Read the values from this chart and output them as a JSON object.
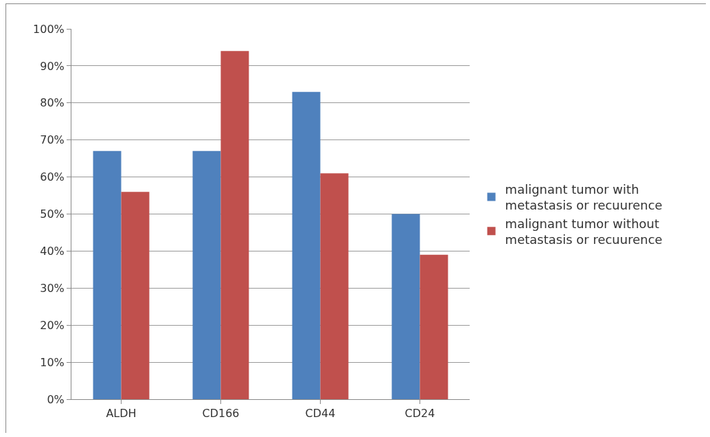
{
  "chart_data": {
    "type": "bar",
    "categories": [
      "ALDH",
      "CD166",
      "CD44",
      "CD24"
    ],
    "series": [
      {
        "name": "malignant tumor with metastasis or recuurence",
        "color": "#4f81bd",
        "values": [
          67,
          67,
          83,
          50
        ]
      },
      {
        "name": "malignant tumor without metastasis or recuurence",
        "color": "#c0504d",
        "values": [
          56,
          94,
          61,
          39
        ]
      }
    ],
    "ylim": [
      0,
      100
    ],
    "yticks": [
      {
        "value": 0,
        "label": "0%"
      },
      {
        "value": 10,
        "label": "10%"
      },
      {
        "value": 20,
        "label": "20%"
      },
      {
        "value": 30,
        "label": "30%"
      },
      {
        "value": 40,
        "label": "40%"
      },
      {
        "value": 50,
        "label": "50%"
      },
      {
        "value": 60,
        "label": "60%"
      },
      {
        "value": 70,
        "label": "70%"
      },
      {
        "value": 80,
        "label": "80%"
      },
      {
        "value": 90,
        "label": "90%"
      },
      {
        "value": 100,
        "label": "100%"
      }
    ],
    "grid": "y",
    "legend": "right"
  }
}
